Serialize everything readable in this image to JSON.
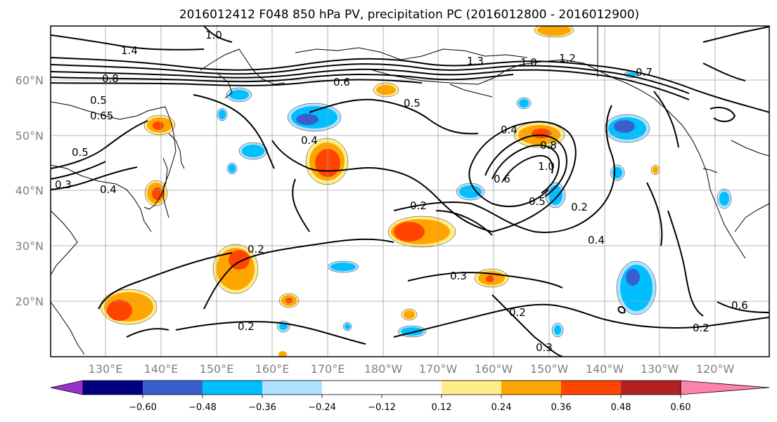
{
  "title": "2016012412 F048 850 hPa PV, precipitation PC (2016012800 - 2016012900)",
  "map": {
    "lat_labels": [
      "60°N",
      "50°N",
      "40°N",
      "30°N",
      "20°N"
    ],
    "lon_labels": [
      "130°E",
      "140°E",
      "150°E",
      "160°E",
      "170°E",
      "180°W",
      "170°W",
      "160°W",
      "150°W",
      "140°W",
      "130°W",
      "120°W"
    ]
  },
  "colorbar": {
    "colors": [
      "#9932cc",
      "#000080",
      "#3a5fcd",
      "#00bfff",
      "#b0e2ff",
      "#ffffff",
      "#ffec8b",
      "#ffa500",
      "#ff4500",
      "#b22222",
      "#ff82ab"
    ],
    "labels": [
      "−0.60",
      "−0.48",
      "−0.36",
      "−0.24",
      "−0.12",
      "0.12",
      "0.24",
      "0.36",
      "0.48",
      "0.60"
    ]
  },
  "contour_labels": [
    "1.0",
    "1.4",
    "0.8",
    "0.5",
    "0.5",
    "0.65",
    "0.3",
    "0.4",
    "0.4",
    "0.6",
    "0.5",
    "1.3",
    "1.0",
    "1.2",
    "0.7",
    "0.4",
    "0.6",
    "0.8",
    "1.0",
    "0.5",
    "0.2",
    "0.2",
    "0.4",
    "0.2",
    "0.3",
    "0.2",
    "0.2",
    "0.3",
    "0.6",
    "0.2"
  ],
  "precip_colors": {
    "pos_light": "#ffec8b",
    "pos_mid": "#ffa500",
    "pos_strong": "#ff4500",
    "neg_light": "#b0e2ff",
    "neg_mid": "#00bfff",
    "neg_strong": "#3a5fcd"
  }
}
